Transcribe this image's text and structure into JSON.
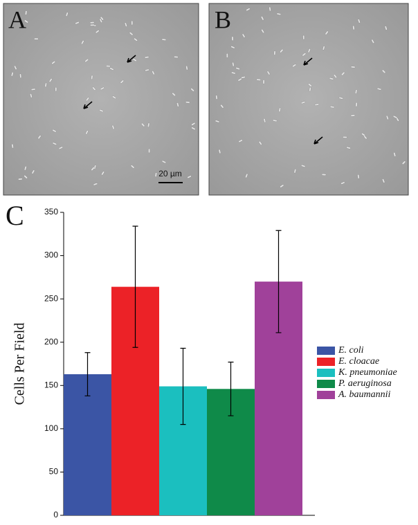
{
  "panels": [
    {
      "label": "A",
      "scale_bar": "20 µm"
    },
    {
      "label": "B"
    }
  ],
  "chart_data": {
    "type": "bar",
    "panel_label": "C",
    "y_label": "Cells Per Field",
    "ylim": [
      0,
      350
    ],
    "yticks": [
      0,
      50,
      100,
      150,
      200,
      250,
      300,
      350
    ],
    "series": [
      {
        "name": "E. coli",
        "color": "#3b55a5",
        "values": [
          163
        ],
        "errors": [
          25
        ]
      },
      {
        "name": "E. cloacae",
        "color": "#ec2227",
        "values": [
          264
        ],
        "errors": [
          70
        ]
      },
      {
        "name": "K. pneumoniae",
        "color": "#1bbfbf",
        "values": [
          149
        ],
        "errors": [
          44
        ]
      },
      {
        "name": "P. aeruginosa",
        "color": "#0f8a49",
        "values": [
          146
        ],
        "errors": [
          31
        ]
      },
      {
        "name": "A. baumannii",
        "color": "#a0419a",
        "values": [
          270
        ],
        "errors": [
          59
        ]
      }
    ]
  }
}
